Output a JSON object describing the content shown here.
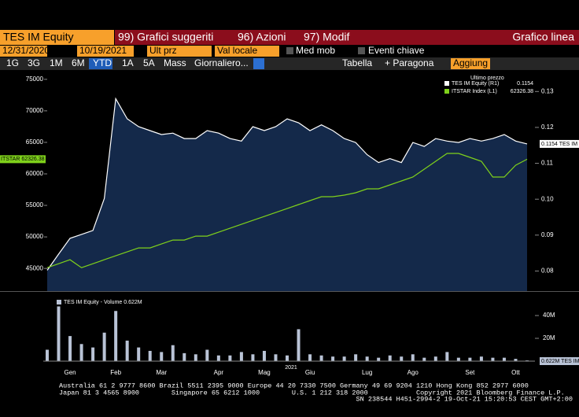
{
  "toolbar": {
    "security": "TES IM Equity",
    "menu": [
      "99) Grafici suggeriti",
      "96) Azioni",
      "97) Modif"
    ],
    "mode": "Grafico linea"
  },
  "fields": {
    "start": "12/31/2020",
    "end": "10/19/2021",
    "field": "Ult prz",
    "currency": "Val locale",
    "moving_avg": "Med mob",
    "events": "Eventi chiave"
  },
  "periods": {
    "items": [
      "1G",
      "3G",
      "1M",
      "6M",
      "YTD",
      "1A",
      "5A",
      "Mass"
    ],
    "frequency": "Giornaliero...",
    "table": "Tabella",
    "compare": "+ Paragona",
    "add": "Aggiung"
  },
  "chart_data": [
    {
      "type": "line",
      "legend": {
        "title": "Ultimo prezzo",
        "last_values": [
          "0.1154",
          "62326.38"
        ]
      },
      "tags": {
        "left": "ITSTAR 62326.38",
        "right": "0.1154 TES IM"
      },
      "series": [
        {
          "name": "TES IM Equity (R1)",
          "color": "#ffffff",
          "fill": "#14294a",
          "axis": "y2",
          "values": [
            0.0802,
            0.0847,
            0.0891,
            0.0902,
            0.0913,
            0.1002,
            0.128,
            0.1224,
            0.1202,
            0.1191,
            0.118,
            0.1184,
            0.1169,
            0.1169,
            0.1191,
            0.1184,
            0.1169,
            0.1162,
            0.1202,
            0.1191,
            0.1202,
            0.1224,
            0.1213,
            0.1191,
            0.1207,
            0.1191,
            0.1169,
            0.1158,
            0.1124,
            0.1102,
            0.1113,
            0.1102,
            0.1158,
            0.1147,
            0.1169,
            0.1162,
            0.1158,
            0.1169,
            0.1162,
            0.1169,
            0.118,
            0.1162,
            0.1154
          ]
        },
        {
          "name": "ITSTAR Index (L1)",
          "color": "#7fd11b",
          "axis": "y",
          "values": [
            45125,
            45750,
            46375,
            45125,
            45750,
            46375,
            47000,
            47625,
            48250,
            48250,
            48875,
            49500,
            49500,
            50125,
            50125,
            50750,
            51375,
            52000,
            52625,
            53250,
            53875,
            54500,
            55125,
            55750,
            56375,
            56375,
            56625,
            57000,
            57625,
            57625,
            58250,
            58875,
            59500,
            60750,
            62000,
            63250,
            63250,
            62625,
            62000,
            59500,
            59500,
            61375,
            62326.38
          ]
        }
      ],
      "ylim": [
        41400,
        76600
      ],
      "yticks": [
        45000,
        50000,
        55000,
        60000,
        65000,
        70000,
        75000
      ],
      "y2lim": [
        0.0744,
        0.1362
      ],
      "y2ticks": [
        0.08,
        0.09,
        {
          "value": 0.1,
          "label": "0.10"
        },
        0.11,
        0.12,
        0.13
      ]
    },
    {
      "type": "bar",
      "title": "TES IM Equity - Volume 0.622M",
      "tag": "0.622M TES IM",
      "year_label": "2021",
      "categories": [
        null,
        null,
        "Gen",
        null,
        null,
        null,
        "Feb",
        null,
        null,
        null,
        "Mar",
        null,
        null,
        null,
        null,
        "Apr",
        null,
        null,
        null,
        "Mag",
        null,
        null,
        null,
        "Giu",
        null,
        null,
        null,
        null,
        "Lug",
        null,
        null,
        null,
        "Ago",
        null,
        null,
        null,
        null,
        "Set",
        null,
        null,
        null,
        "Ott",
        null
      ],
      "color": "#b9c3d6",
      "values": [
        10000000,
        48000000,
        22000000,
        15000000,
        12000000,
        25000000,
        44000000,
        18000000,
        12000000,
        9000000,
        8000000,
        14000000,
        7000000,
        6000000,
        10000000,
        5000000,
        5000000,
        8000000,
        6000000,
        9000000,
        6000000,
        5000000,
        28000000,
        6000000,
        5000000,
        4000000,
        4000000,
        6000000,
        4000000,
        3000000,
        5000000,
        4000000,
        6000000,
        3000000,
        4000000,
        8000000,
        3000000,
        3000000,
        4000000,
        3000000,
        3000000,
        2000000,
        622000
      ],
      "ylim": [
        0,
        55900000
      ],
      "yticks": [
        {
          "value": 20000000,
          "label": "20M"
        },
        {
          "value": 40000000,
          "label": "40M"
        }
      ]
    }
  ],
  "footer": [
    "Australia 61 2 9777 8600 Brazil 5511 2395 9000 Europe 44 20 7330 7500 Germany 49 69 9204 1210 Hong Kong 852 2977 6000",
    "Japan 81 3 4565 8900        Singapore 65 6212 1000        U.S. 1 212 318 2000            Copyright 2021 Bloomberg Finance L.P.",
    "SN 238544 H451-2994-2 19-Oct-21 15:20:53 CEST GMT+2:00"
  ]
}
